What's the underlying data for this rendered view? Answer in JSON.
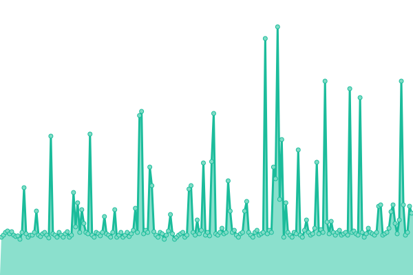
{
  "chart_data": {
    "type": "area",
    "title": "",
    "xlabel": "",
    "ylabel": "",
    "ylim": [
      0,
      400
    ],
    "grid": false,
    "legend": "none",
    "markers": true,
    "colors": {
      "line": "#1bbc9b",
      "fill": "#8be0cd",
      "marker_fill": "#7fdcc6",
      "marker_stroke": "#1bbc9b"
    },
    "series": [
      {
        "values": [
          55,
          58,
          62,
          64,
          60,
          63,
          58,
          56,
          57,
          52,
          62,
          127,
          60,
          55,
          58,
          58,
          62,
          93,
          58,
          56,
          60,
          62,
          58,
          54,
          202,
          60,
          58,
          55,
          62,
          58,
          55,
          60,
          63,
          55,
          58,
          120,
          70,
          105,
          62,
          95,
          75,
          62,
          60,
          205,
          58,
          55,
          62,
          60,
          57,
          62,
          85,
          60,
          58,
          55,
          62,
          95,
          55,
          58,
          62,
          55,
          58,
          62,
          56,
          60,
          65,
          97,
          62,
          232,
          238,
          60,
          65,
          62,
          157,
          130,
          63,
          58,
          55,
          62,
          60,
          52,
          58,
          64,
          88,
          60,
          52,
          55,
          58,
          60,
          62,
          55,
          58,
          125,
          130,
          62,
          58,
          80,
          60,
          65,
          163,
          58,
          62,
          57,
          165,
          235,
          60,
          58,
          62,
          68,
          60,
          62,
          137,
          93,
          62,
          65,
          58,
          55,
          60,
          62,
          93,
          107,
          62,
          58,
          55,
          62,
          65,
          58,
          60,
          62,
          344,
          60,
          65,
          62,
          157,
          140,
          361,
          110,
          197,
          55,
          105,
          62,
          58,
          55,
          62,
          60,
          182,
          58,
          55,
          65,
          80,
          62,
          58,
          60,
          68,
          164,
          60,
          66,
          62,
          282,
          77,
          60,
          78,
          62,
          58,
          62,
          65,
          58,
          60,
          62,
          58,
          271,
          62,
          64,
          60,
          58,
          258,
          62,
          55,
          60,
          68,
          62,
          60,
          58,
          62,
          100,
          102,
          58,
          60,
          62,
          68,
          92,
          102,
          75,
          60,
          80,
          282,
          102,
          58,
          62,
          100,
          90
        ]
      }
    ]
  }
}
